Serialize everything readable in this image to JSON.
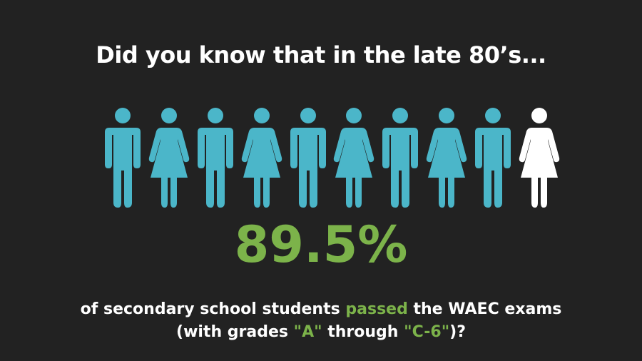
{
  "headline": "Did you know that in the late 80’s...",
  "icon_colors": {
    "highlighted": "#4bb6c9",
    "remaining": "#ffffff",
    "accent_text": "#7cb34a",
    "background": "#222222"
  },
  "figures": [
    {
      "icon": "man-icon",
      "color": "highlighted"
    },
    {
      "icon": "woman-icon",
      "color": "highlighted"
    },
    {
      "icon": "man-icon",
      "color": "highlighted"
    },
    {
      "icon": "woman-icon",
      "color": "highlighted"
    },
    {
      "icon": "man-icon",
      "color": "highlighted"
    },
    {
      "icon": "woman-icon",
      "color": "highlighted"
    },
    {
      "icon": "man-icon",
      "color": "highlighted"
    },
    {
      "icon": "woman-icon",
      "color": "highlighted"
    },
    {
      "icon": "man-icon",
      "color": "highlighted"
    },
    {
      "icon": "woman-icon",
      "color": "remaining"
    }
  ],
  "stat": {
    "value": "89.5%"
  },
  "caption": {
    "line1_before": "of secondary school students ",
    "line1_highlight": "passed",
    "line1_after": " the WAEC exams",
    "line2_before": "(with grades ",
    "line2_grade_a": "\"A\"",
    "line2_middle": " through ",
    "line2_grade_c": "\"C-6\"",
    "line2_after": ")?"
  }
}
